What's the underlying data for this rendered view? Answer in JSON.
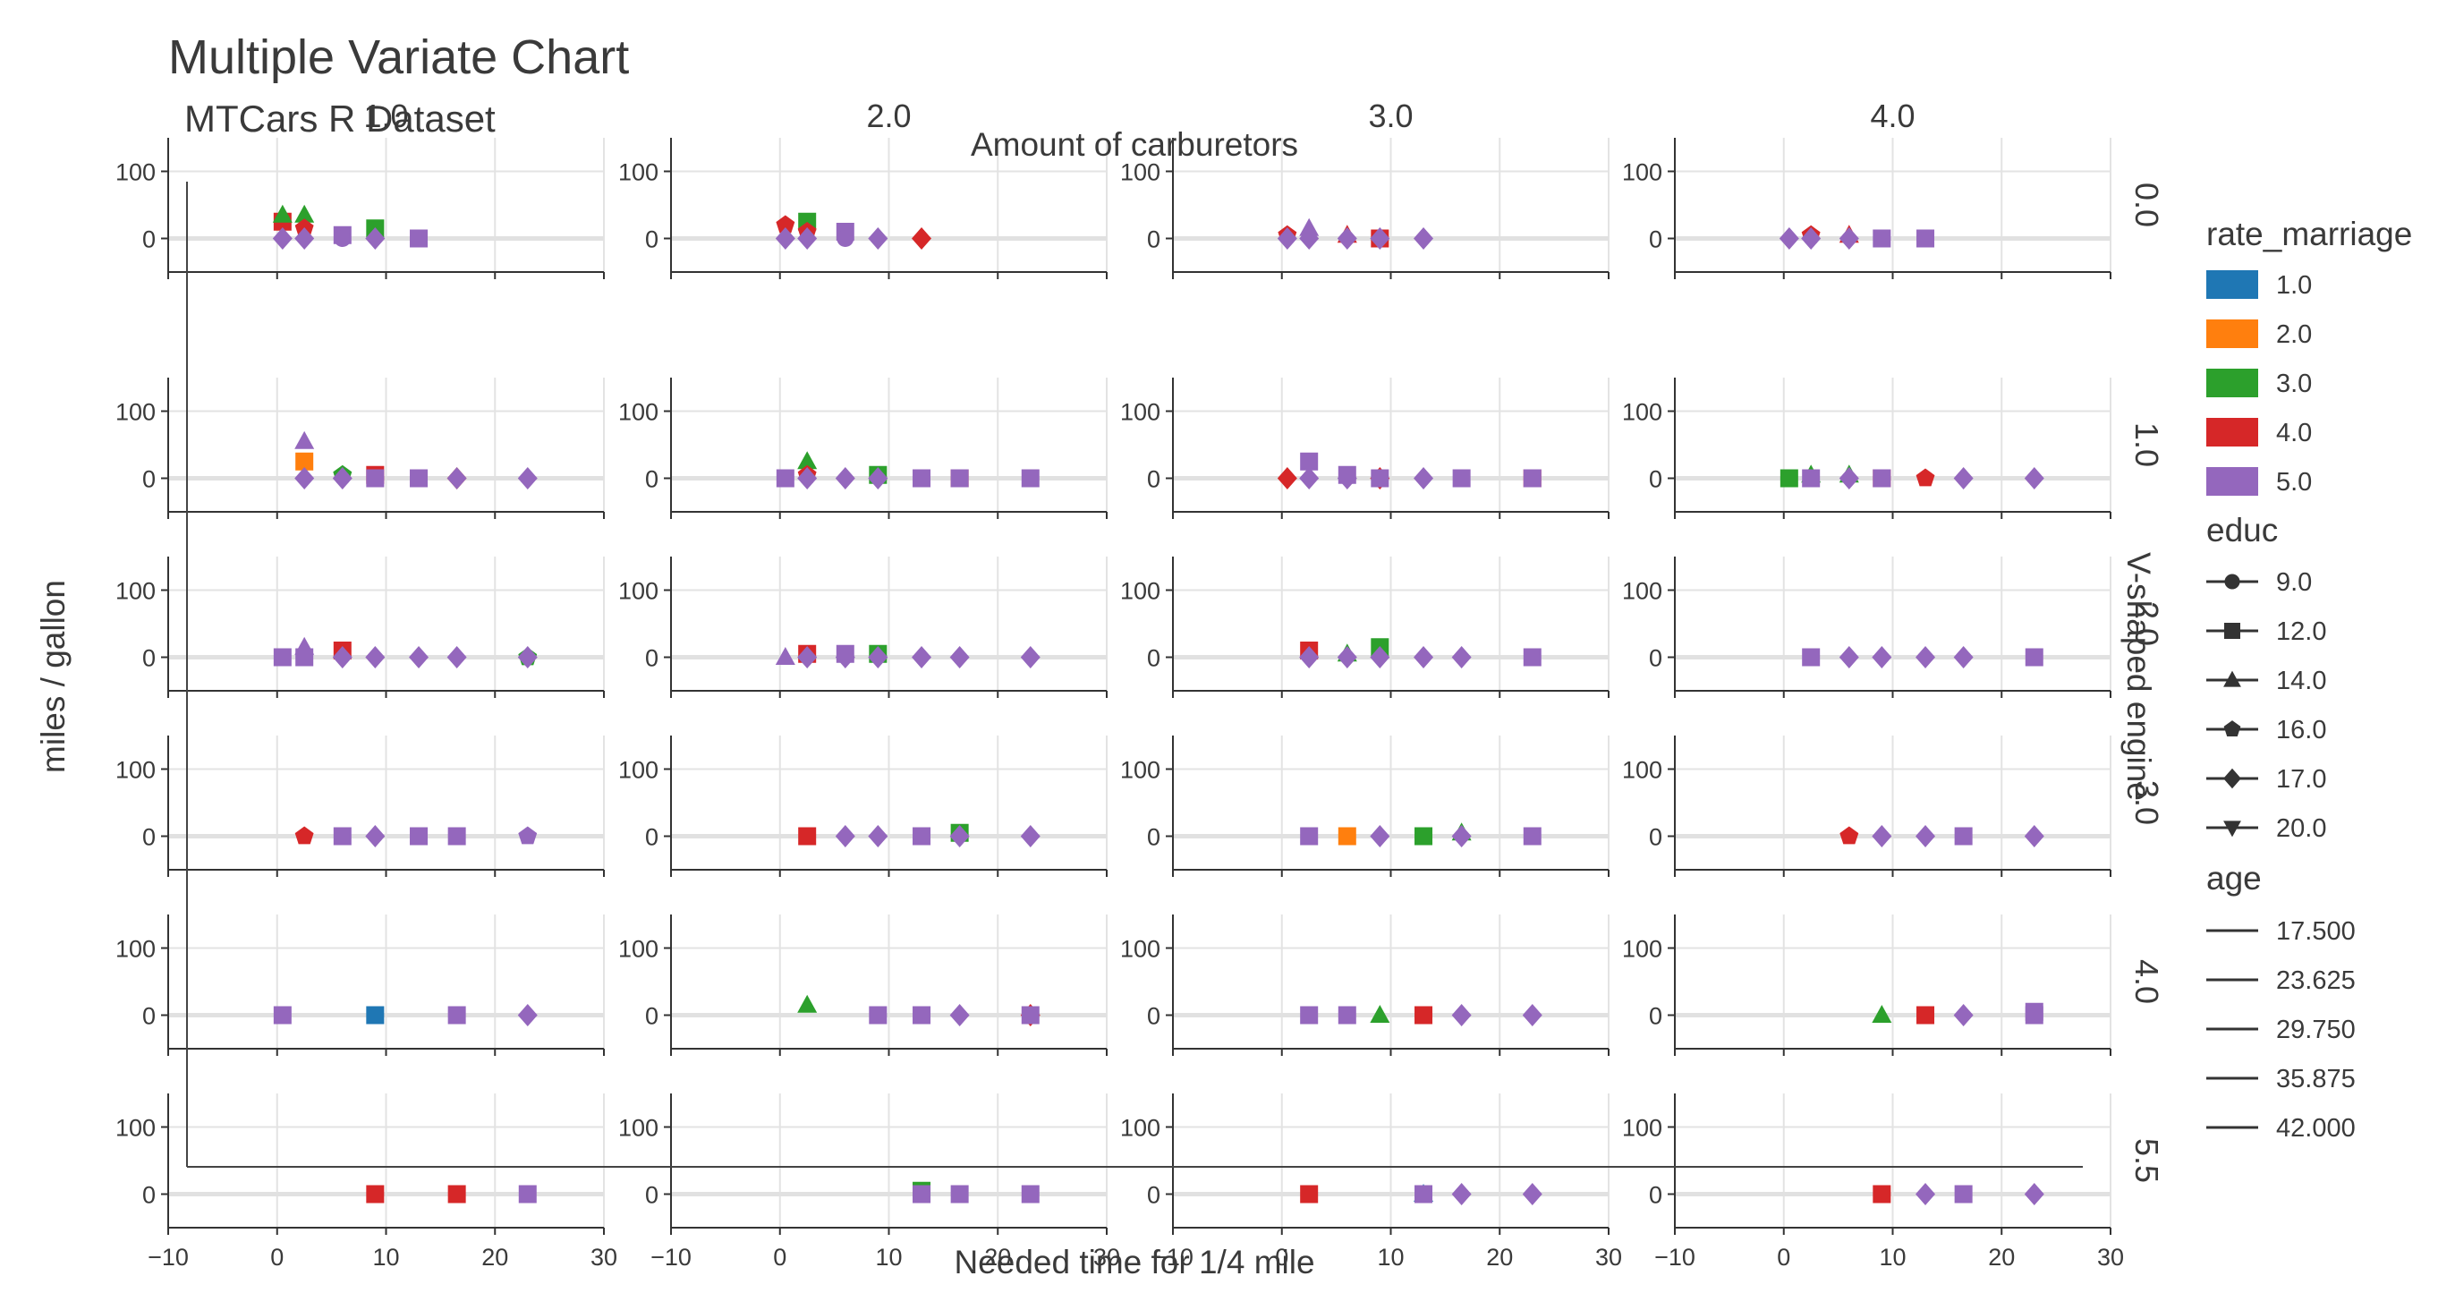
{
  "chart_data": {
    "type": "scatter",
    "title": "Multiple Variate Chart",
    "subtitle": "MTCars R Dataset",
    "xlabel": "Needed time for 1/4 mile",
    "ylabel": "miles / gallon",
    "col_var_label": "Amount of carburetors",
    "row_var_label": "V-shaped engine",
    "col_values": [
      "1.0",
      "2.0",
      "3.0",
      "4.0"
    ],
    "row_values": [
      "0.0",
      "1.0",
      "2.0",
      "3.0",
      "4.0",
      "5.5"
    ],
    "xlim": [
      -10,
      30
    ],
    "ylim": [
      -50,
      150
    ],
    "xticks": [
      "−10",
      "0",
      "10",
      "20",
      "30"
    ],
    "yticks": [
      "0",
      "100"
    ],
    "grid": true,
    "legend_position": "right",
    "colors": {
      "1.0": "#1f77b4",
      "2.0": "#ff7f0e",
      "3.0": "#2ca02c",
      "4.0": "#d62728",
      "5.0": "#9467bd"
    },
    "legend": {
      "color_title": "rate_marriage",
      "color_entries": [
        "1.0",
        "2.0",
        "3.0",
        "4.0",
        "5.0"
      ],
      "marker_title": "educ",
      "marker_entries": [
        {
          "label": "9.0",
          "marker": "circle"
        },
        {
          "label": "12.0",
          "marker": "square"
        },
        {
          "label": "14.0",
          "marker": "triangle-up"
        },
        {
          "label": "16.0",
          "marker": "pentagon"
        },
        {
          "label": "17.0",
          "marker": "diamond"
        },
        {
          "label": "20.0",
          "marker": "triangle-down"
        }
      ],
      "size_title": "age",
      "size_entries": [
        "17.500",
        "23.625",
        "29.750",
        "35.875",
        "42.000"
      ]
    },
    "panels": [
      {
        "row": "0.0",
        "col": "1.0",
        "points": [
          [
            0.5,
            25,
            4,
            12
          ],
          [
            0.5,
            35,
            3,
            14
          ],
          [
            2.5,
            35,
            3,
            14
          ],
          [
            2.5,
            15,
            4,
            16
          ],
          [
            0.5,
            0,
            5,
            17
          ],
          [
            2.5,
            0,
            5,
            17
          ],
          [
            6,
            5,
            5,
            12
          ],
          [
            9,
            15,
            3,
            12
          ],
          [
            13,
            0,
            5,
            12
          ],
          [
            6,
            0,
            5,
            9
          ],
          [
            9,
            0,
            5,
            17
          ]
        ]
      },
      {
        "row": "0.0",
        "col": "2.0",
        "points": [
          [
            0.5,
            20,
            4,
            16
          ],
          [
            2.5,
            25,
            3,
            12
          ],
          [
            2.5,
            10,
            4,
            16
          ],
          [
            0.5,
            0,
            5,
            17
          ],
          [
            2.5,
            0,
            5,
            17
          ],
          [
            6,
            10,
            5,
            12
          ],
          [
            9,
            0,
            5,
            17
          ],
          [
            13,
            0,
            4,
            17
          ],
          [
            6,
            0,
            5,
            9
          ]
        ]
      },
      {
        "row": "0.0",
        "col": "3.0",
        "points": [
          [
            0.5,
            5,
            4,
            16
          ],
          [
            2.5,
            15,
            5,
            14
          ],
          [
            6,
            5,
            4,
            14
          ],
          [
            9,
            0,
            4,
            12
          ],
          [
            0.5,
            0,
            5,
            17
          ],
          [
            2.5,
            0,
            5,
            17
          ],
          [
            6,
            0,
            5,
            17
          ],
          [
            9,
            0,
            5,
            17
          ],
          [
            13,
            0,
            5,
            17
          ]
        ]
      },
      {
        "row": "0.0",
        "col": "4.0",
        "points": [
          [
            2.5,
            5,
            4,
            16
          ],
          [
            6,
            5,
            4,
            14
          ],
          [
            0.5,
            0,
            5,
            17
          ],
          [
            2.5,
            0,
            5,
            17
          ],
          [
            6,
            0,
            5,
            17
          ],
          [
            9,
            0,
            5,
            12
          ],
          [
            13,
            0,
            5,
            12
          ]
        ]
      },
      {
        "row": "1.0",
        "col": "1.0",
        "points": [
          [
            2.5,
            55,
            5,
            14
          ],
          [
            2.5,
            25,
            2,
            12
          ],
          [
            6,
            5,
            3,
            16
          ],
          [
            9,
            5,
            4,
            12
          ],
          [
            2.5,
            0,
            5,
            17
          ],
          [
            6,
            0,
            5,
            17
          ],
          [
            9,
            0,
            5,
            12
          ],
          [
            13,
            0,
            5,
            12
          ],
          [
            16.5,
            0,
            2,
            17
          ],
          [
            16.5,
            0,
            5,
            17
          ],
          [
            23,
            0,
            5,
            17
          ]
        ]
      },
      {
        "row": "1.0",
        "col": "2.0",
        "points": [
          [
            2.5,
            25,
            3,
            14
          ],
          [
            2.5,
            5,
            4,
            16
          ],
          [
            9,
            5,
            3,
            12
          ],
          [
            0.5,
            0,
            5,
            12
          ],
          [
            2.5,
            0,
            5,
            17
          ],
          [
            6,
            0,
            5,
            17
          ],
          [
            9,
            0,
            5,
            17
          ],
          [
            13,
            0,
            5,
            12
          ],
          [
            16.5,
            0,
            4,
            12
          ],
          [
            16.5,
            0,
            5,
            12
          ],
          [
            23,
            0,
            5,
            12
          ]
        ]
      },
      {
        "row": "1.0",
        "col": "3.0",
        "points": [
          [
            2.5,
            25,
            5,
            12
          ],
          [
            6,
            5,
            5,
            12
          ],
          [
            0.5,
            0,
            4,
            17
          ],
          [
            2.5,
            0,
            5,
            17
          ],
          [
            6,
            0,
            5,
            17
          ],
          [
            9,
            0,
            4,
            17
          ],
          [
            9,
            0,
            5,
            12
          ],
          [
            13,
            0,
            5,
            17
          ],
          [
            16.5,
            0,
            5,
            12
          ],
          [
            23,
            0,
            4,
            12
          ],
          [
            23,
            0,
            5,
            12
          ]
        ]
      },
      {
        "row": "1.0",
        "col": "4.0",
        "points": [
          [
            0.5,
            0,
            3,
            12
          ],
          [
            2.5,
            5,
            3,
            14
          ],
          [
            6,
            5,
            3,
            14
          ],
          [
            2.5,
            0,
            5,
            12
          ],
          [
            6,
            0,
            5,
            17
          ],
          [
            9,
            0,
            4,
            12
          ],
          [
            9,
            0,
            5,
            12
          ],
          [
            13,
            0,
            4,
            16
          ],
          [
            16.5,
            0,
            5,
            17
          ],
          [
            23,
            0,
            5,
            17
          ]
        ]
      },
      {
        "row": "2.0",
        "col": "1.0",
        "points": [
          [
            0.5,
            0,
            5,
            12
          ],
          [
            2.5,
            15,
            5,
            14
          ],
          [
            6,
            10,
            4,
            12
          ],
          [
            2.5,
            0,
            5,
            12
          ],
          [
            6,
            0,
            5,
            17
          ],
          [
            9,
            0,
            5,
            17
          ],
          [
            13,
            0,
            5,
            17
          ],
          [
            16.5,
            0,
            5,
            17
          ],
          [
            23,
            0,
            3,
            16
          ],
          [
            23,
            0,
            5,
            17
          ]
        ]
      },
      {
        "row": "2.0",
        "col": "2.0",
        "points": [
          [
            0.5,
            0,
            5,
            14
          ],
          [
            2.5,
            5,
            4,
            12
          ],
          [
            6,
            5,
            5,
            12
          ],
          [
            9,
            5,
            3,
            12
          ],
          [
            2.5,
            0,
            5,
            17
          ],
          [
            6,
            0,
            5,
            17
          ],
          [
            9,
            0,
            5,
            17
          ],
          [
            13,
            0,
            5,
            17
          ],
          [
            16.5,
            0,
            5,
            17
          ],
          [
            23,
            0,
            5,
            17
          ]
        ]
      },
      {
        "row": "2.0",
        "col": "3.0",
        "points": [
          [
            2.5,
            10,
            4,
            12
          ],
          [
            6,
            5,
            3,
            14
          ],
          [
            9,
            15,
            3,
            12
          ],
          [
            2.5,
            0,
            5,
            17
          ],
          [
            6,
            0,
            5,
            17
          ],
          [
            9,
            0,
            5,
            17
          ],
          [
            13,
            0,
            5,
            17
          ],
          [
            16.5,
            0,
            5,
            17
          ],
          [
            23,
            0,
            5,
            12
          ]
        ]
      },
      {
        "row": "2.0",
        "col": "4.0",
        "points": [
          [
            2.5,
            0,
            5,
            12
          ],
          [
            6,
            0,
            5,
            17
          ],
          [
            9,
            0,
            5,
            17
          ],
          [
            13,
            0,
            5,
            17
          ],
          [
            16.5,
            0,
            5,
            17
          ],
          [
            23,
            0,
            5,
            12
          ]
        ]
      },
      {
        "row": "3.0",
        "col": "1.0",
        "points": [
          [
            2.5,
            0,
            4,
            16
          ],
          [
            6,
            0,
            5,
            12
          ],
          [
            9,
            0,
            5,
            17
          ],
          [
            13,
            0,
            5,
            12
          ],
          [
            16.5,
            0,
            5,
            12
          ],
          [
            23,
            0,
            5,
            16
          ]
        ]
      },
      {
        "row": "3.0",
        "col": "2.0",
        "points": [
          [
            2.5,
            0,
            4,
            12
          ],
          [
            6,
            0,
            5,
            17
          ],
          [
            9,
            0,
            5,
            17
          ],
          [
            13,
            0,
            5,
            12
          ],
          [
            16.5,
            5,
            3,
            12
          ],
          [
            16.5,
            0,
            5,
            17
          ],
          [
            23,
            0,
            5,
            17
          ]
        ]
      },
      {
        "row": "3.0",
        "col": "3.0",
        "points": [
          [
            2.5,
            0,
            5,
            12
          ],
          [
            6,
            0,
            2,
            12
          ],
          [
            9,
            0,
            5,
            17
          ],
          [
            13,
            0,
            3,
            12
          ],
          [
            16.5,
            5,
            3,
            14
          ],
          [
            16.5,
            0,
            5,
            17
          ],
          [
            23,
            0,
            5,
            12
          ]
        ]
      },
      {
        "row": "3.0",
        "col": "4.0",
        "points": [
          [
            6,
            0,
            4,
            16
          ],
          [
            9,
            0,
            5,
            17
          ],
          [
            13,
            0,
            5,
            17
          ],
          [
            16.5,
            0,
            5,
            12
          ],
          [
            23,
            0,
            5,
            17
          ]
        ]
      },
      {
        "row": "4.0",
        "col": "1.0",
        "points": [
          [
            0.5,
            0,
            5,
            12
          ],
          [
            9,
            0,
            1,
            12
          ],
          [
            16.5,
            0,
            5,
            12
          ],
          [
            23,
            0,
            5,
            17
          ]
        ]
      },
      {
        "row": "4.0",
        "col": "2.0",
        "points": [
          [
            2.5,
            15,
            3,
            14
          ],
          [
            9,
            0,
            5,
            12
          ],
          [
            13,
            0,
            5,
            12
          ],
          [
            16.5,
            0,
            5,
            17
          ],
          [
            23,
            0,
            4,
            17
          ],
          [
            23,
            0,
            5,
            12
          ]
        ]
      },
      {
        "row": "4.0",
        "col": "3.0",
        "points": [
          [
            2.5,
            0,
            5,
            12
          ],
          [
            6,
            0,
            5,
            12
          ],
          [
            9,
            0,
            3,
            14
          ],
          [
            13,
            0,
            4,
            12
          ],
          [
            16.5,
            0,
            5,
            17
          ],
          [
            23,
            0,
            5,
            17
          ]
        ]
      },
      {
        "row": "4.0",
        "col": "4.0",
        "points": [
          [
            9,
            0,
            3,
            14
          ],
          [
            13,
            0,
            4,
            12
          ],
          [
            16.5,
            0,
            5,
            17
          ],
          [
            23,
            5,
            5,
            12
          ],
          [
            23,
            0,
            5,
            12
          ]
        ]
      },
      {
        "row": "5.5",
        "col": "1.0",
        "points": [
          [
            9,
            0,
            4,
            12
          ],
          [
            16.5,
            0,
            4,
            12
          ],
          [
            23,
            0,
            5,
            12
          ]
        ]
      },
      {
        "row": "5.5",
        "col": "2.0",
        "points": [
          [
            13,
            5,
            3,
            12
          ],
          [
            13,
            0,
            5,
            12
          ],
          [
            16.5,
            0,
            5,
            12
          ],
          [
            23,
            0,
            5,
            12
          ]
        ]
      },
      {
        "row": "5.5",
        "col": "3.0",
        "points": [
          [
            2.5,
            0,
            4,
            12
          ],
          [
            13,
            0,
            1,
            14
          ],
          [
            13,
            0,
            5,
            12
          ],
          [
            16.5,
            0,
            5,
            17
          ],
          [
            23,
            0,
            5,
            17
          ]
        ]
      },
      {
        "row": "5.5",
        "col": "4.0",
        "points": [
          [
            9,
            0,
            4,
            12
          ],
          [
            13,
            0,
            5,
            17
          ],
          [
            16.5,
            0,
            5,
            12
          ],
          [
            23,
            0,
            5,
            17
          ]
        ]
      }
    ]
  }
}
